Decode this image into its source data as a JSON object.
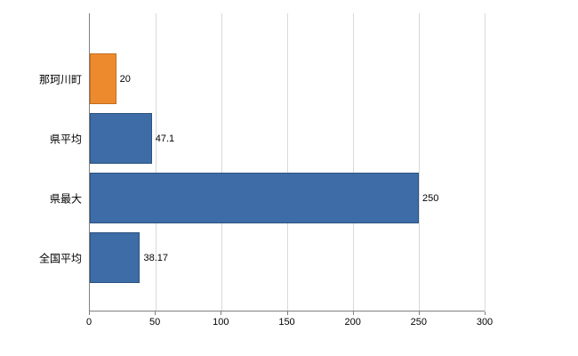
{
  "chart_data": {
    "type": "bar",
    "orientation": "horizontal",
    "title": "",
    "categories": [
      "那珂川町",
      "県平均",
      "県最大",
      "全国平均"
    ],
    "values": [
      20,
      47.1,
      250,
      38.17
    ],
    "value_labels": [
      "20",
      "47.1",
      "250",
      "38.17"
    ],
    "bar_colors": [
      "#EE8A2E",
      "#3D6CA6",
      "#3D6CA6",
      "#3D6CA6"
    ],
    "bar_border_colors": [
      "#C06F1E",
      "#2C5380",
      "#2C5380",
      "#2C5380"
    ],
    "xlim": [
      0,
      300
    ],
    "x_ticks": [
      "0",
      "50",
      "100",
      "150",
      "200",
      "250",
      "300"
    ],
    "grid": true,
    "legend": "none"
  },
  "colors": {
    "axis": "#808080",
    "gridline": "#D9D9D9",
    "text": "#000000",
    "background": "#FFFFFF"
  }
}
